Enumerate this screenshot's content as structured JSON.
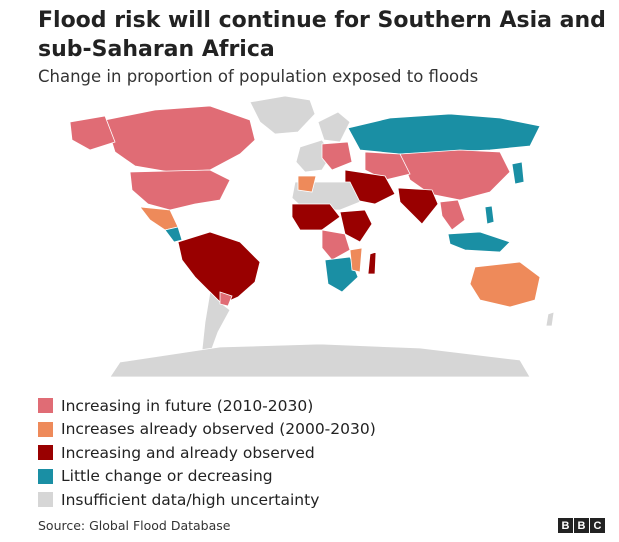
{
  "header": {
    "title": "Flood risk will continue for Southern Asia and sub-Saharan Africa",
    "subtitle": "Change in proportion of population exposed to floods"
  },
  "colors": {
    "future": "#e06c75",
    "already": "#ee8a5a",
    "both": "#990000",
    "little": "#1a8fa4",
    "insufficient": "#d6d6d6"
  },
  "legend": [
    {
      "key": "future",
      "label": "Increasing in future (2010-2030)"
    },
    {
      "key": "already",
      "label": "Increases already observed (2000-2030)"
    },
    {
      "key": "both",
      "label": "Increasing and already observed"
    },
    {
      "key": "little",
      "label": "Little change or decreasing"
    },
    {
      "key": "insufficient",
      "label": "Insufficient data/high uncertainty"
    }
  ],
  "footer": {
    "source": "Source: Global Flood Database",
    "logo": [
      "B",
      "B",
      "C"
    ]
  }
}
